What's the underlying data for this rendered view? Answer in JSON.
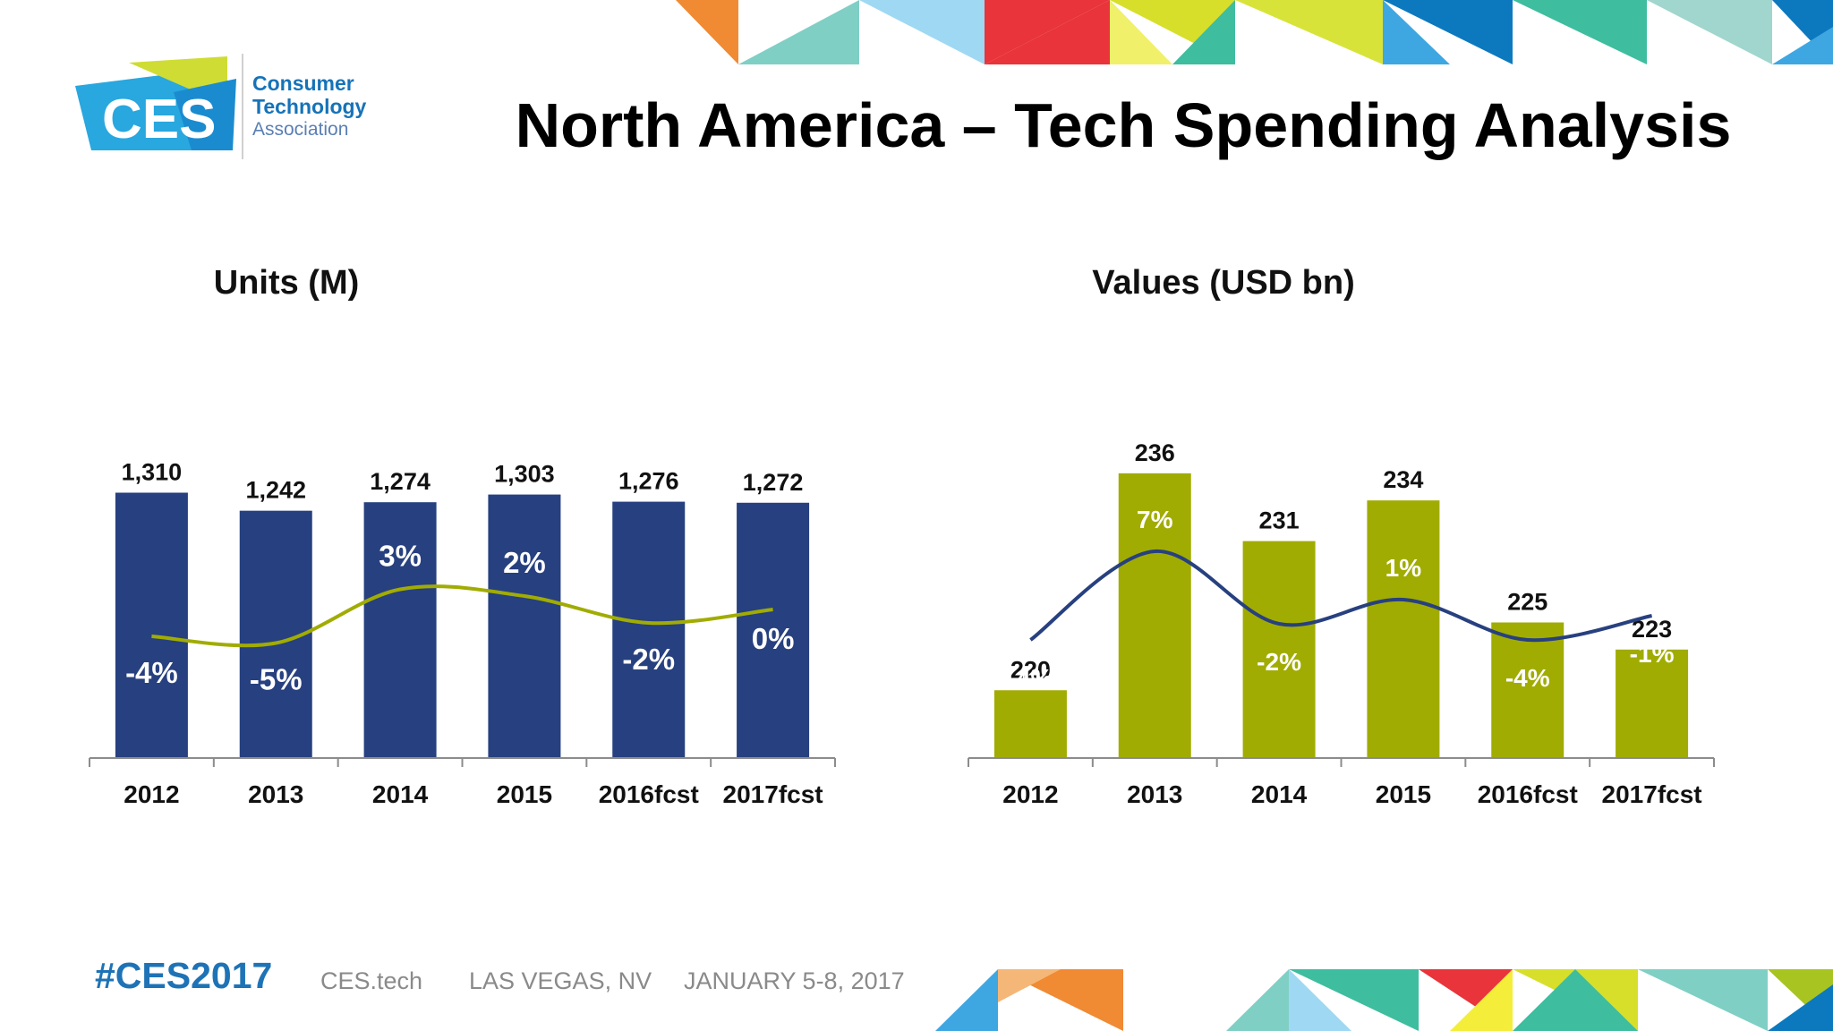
{
  "header": {
    "title": "North America – Tech Spending Analysis",
    "logo_text": "CES",
    "org_lines": [
      "Consumer",
      "Technology",
      "Association"
    ]
  },
  "footer": {
    "hashtag": "#CES2017",
    "site": "CES.tech",
    "location": "LAS VEGAS, NV",
    "dates": "JANUARY 5-8, 2017"
  },
  "colors": {
    "navy": "#27407f",
    "olive": "#a1ac02",
    "line_on_navy": "#a1ac02",
    "line_on_olive": "#27407f",
    "logo_blue": "#1673b8",
    "hashtag_blue": "#1e73b6"
  },
  "chart_data": [
    {
      "type": "bar",
      "title": "Units (M)",
      "categories": [
        "2012",
        "2013",
        "2014",
        "2015",
        "2016fcst",
        "2017fcst"
      ],
      "values": [
        1310,
        1242,
        1274,
        1303,
        1276,
        1272
      ],
      "value_labels": [
        "1,310",
        "1,242",
        "1,274",
        "1,303",
        "1,276",
        "1,272"
      ],
      "growth": [
        -4,
        -5,
        3,
        2,
        -2,
        0
      ],
      "growth_labels": [
        "-4%",
        "-5%",
        "3%",
        "2%",
        "-2%",
        "0%"
      ],
      "bar_color": "#27407f",
      "line_color": "#a1ac02"
    },
    {
      "type": "bar",
      "title": "Values (USD bn)",
      "categories": [
        "2012",
        "2013",
        "2014",
        "2015",
        "2016fcst",
        "2017fcst"
      ],
      "values": [
        220,
        236,
        231,
        234,
        225,
        223
      ],
      "value_labels": [
        "220",
        "236",
        "231",
        "234",
        "225",
        "223"
      ],
      "growth": [
        -4,
        7,
        -2,
        1,
        -4,
        -1
      ],
      "growth_labels": [
        "-4%",
        "7%",
        "-2%",
        "1%",
        "-4%",
        "-1%"
      ],
      "bar_color": "#a1ac02",
      "line_color": "#27407f"
    }
  ]
}
